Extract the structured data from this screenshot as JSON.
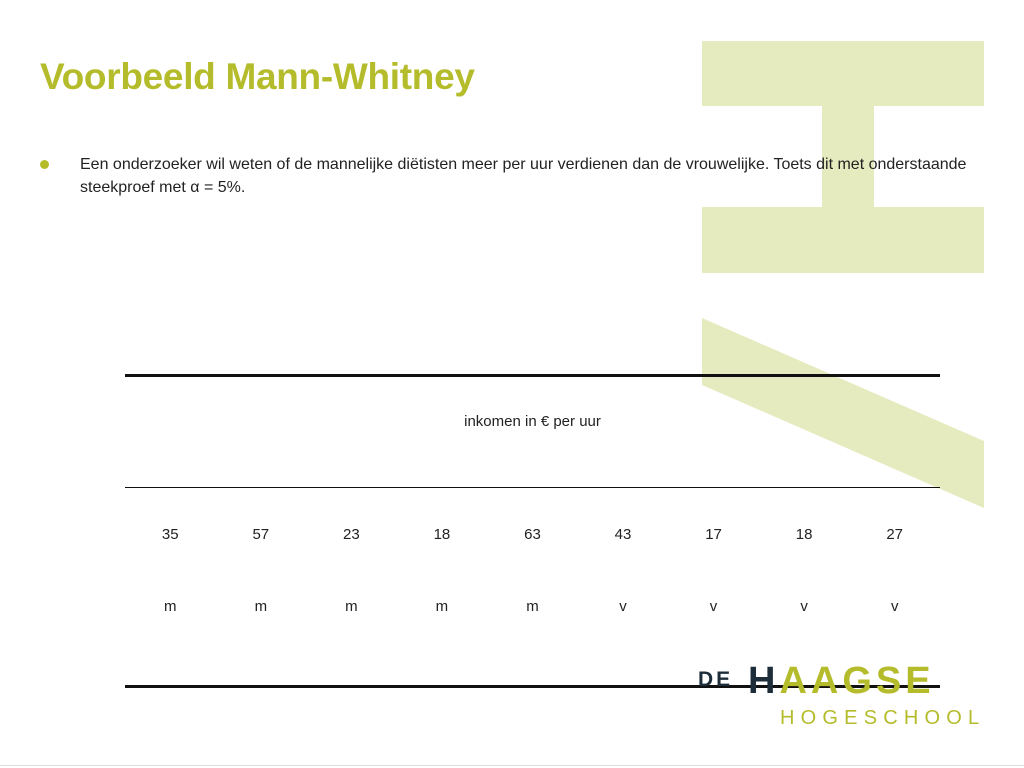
{
  "slide": {
    "title": "Voorbeeld Mann-Whitney",
    "bullet": "Een onderzoeker wil weten of de mannelijke diëtisten meer per uur verdienen dan de vrouwelijke. Toets dit met onderstaande steekproef met α = 5%."
  },
  "table": {
    "header": "inkomen in € per uur",
    "values": [
      "35",
      "57",
      "23",
      "18",
      "63",
      "43",
      "17",
      "18",
      "27"
    ],
    "sex": [
      "m",
      "m",
      "m",
      "m",
      "m",
      "v",
      "v",
      "v",
      "v"
    ]
  },
  "logo": {
    "prefix": "DE",
    "first_letter": "H",
    "rest": "AAGSE",
    "subtitle": "HOGESCHOOL"
  },
  "colors": {
    "accent": "#b5bc2b",
    "watermark": "#e6ebbf",
    "logo_dark": "#1d2d3a"
  }
}
